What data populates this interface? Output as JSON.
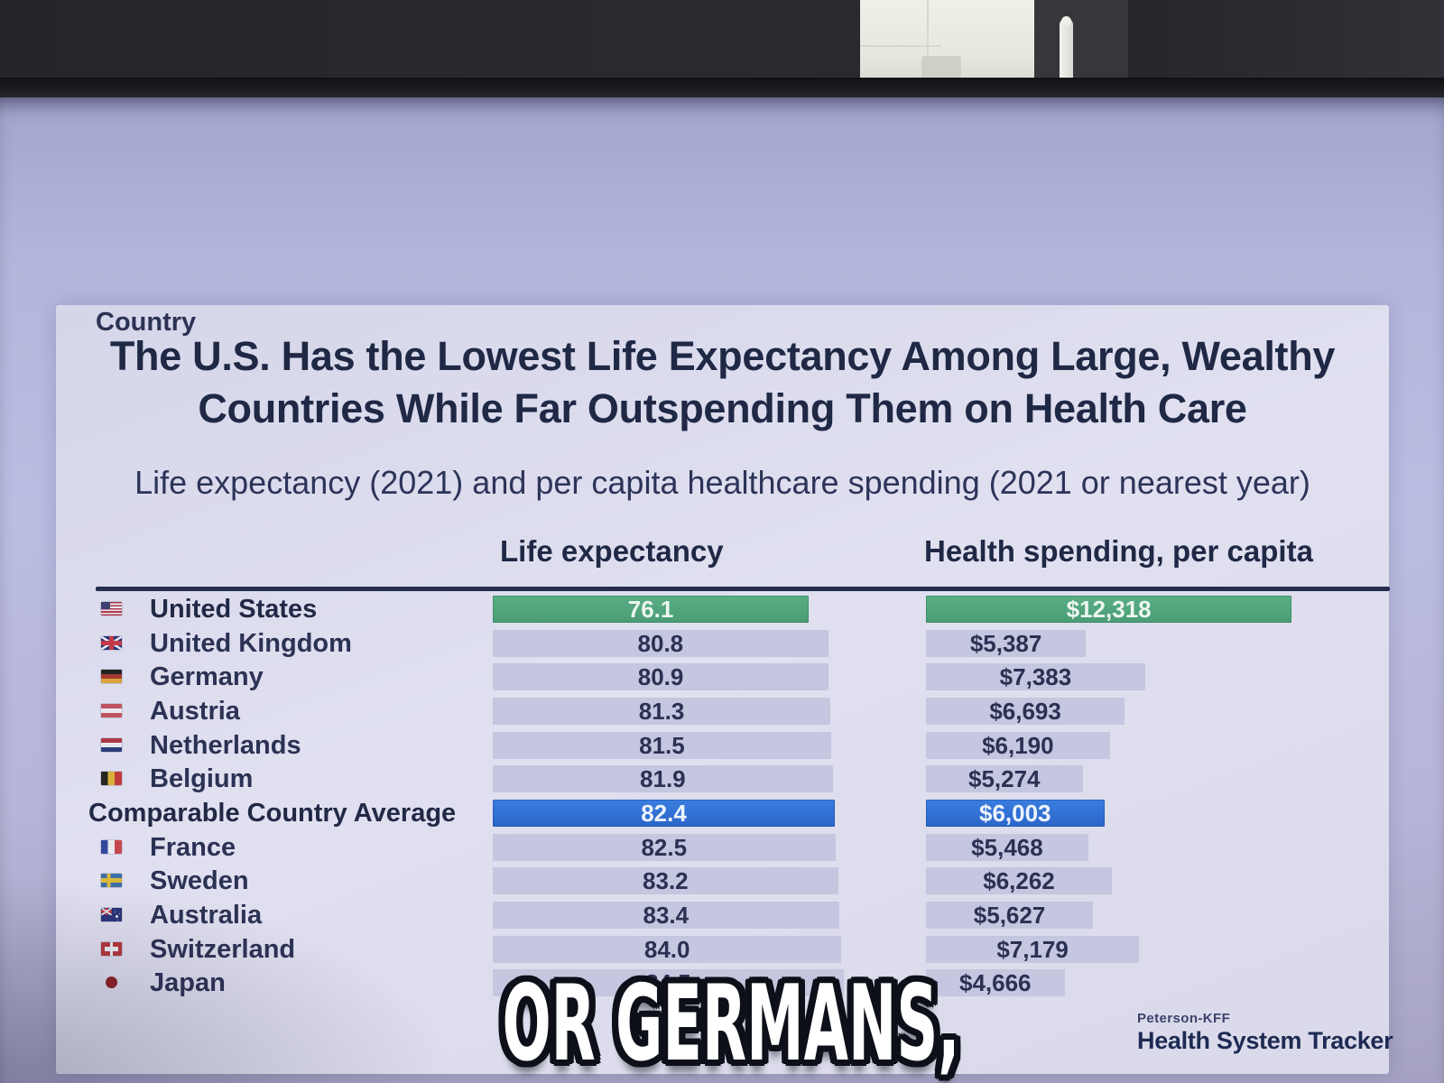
{
  "chart": {
    "title_lines": [
      "The U.S. Has the Lowest Life Expectancy Among Large, Wealthy",
      "Countries While Far Outspending Them on Health Care"
    ],
    "subtitle": "Life expectancy (2021) and per capita healthcare spending (2021 or nearest year)",
    "columns": {
      "country": "Country",
      "life": "Life expectancy",
      "spend": "Health spending, per capita"
    }
  },
  "chart_data": {
    "type": "bar",
    "orientation": "horizontal",
    "title": "The U.S. Has the Lowest Life Expectancy Among Large, Wealthy Countries While Far Outspending Them on Health Care",
    "subtitle": "Life expectancy (2021) and per capita healthcare spending (2021 or nearest year)",
    "categories": [
      "United States",
      "United Kingdom",
      "Germany",
      "Austria",
      "Netherlands",
      "Belgium",
      "Comparable Country Average",
      "France",
      "Sweden",
      "Australia",
      "Switzerland",
      "Japan"
    ],
    "series": [
      {
        "name": "Life expectancy",
        "values": [
          76.1,
          80.8,
          80.9,
          81.3,
          81.5,
          81.9,
          82.4,
          82.5,
          83.2,
          83.4,
          84.0,
          84.5
        ]
      },
      {
        "name": "Health spending, per capita (USD)",
        "values": [
          12318,
          5387,
          7383,
          6693,
          6190,
          5274,
          6003,
          5468,
          6262,
          5627,
          7179,
          4666
        ]
      }
    ],
    "highlighted_rows": {
      "United States": "green",
      "Comparable Country Average": "blue"
    },
    "axis_start": 0,
    "grid": false,
    "legend": false
  },
  "table": {
    "flags": [
      "us",
      "gb",
      "de",
      "at",
      "nl",
      "be",
      "",
      "fr",
      "se",
      "au",
      "ch",
      "jp"
    ],
    "highlight": [
      "green",
      "",
      "",
      "",
      "",
      "",
      "blue",
      "",
      "",
      "",
      "",
      ""
    ],
    "bold": [
      true,
      false,
      false,
      false,
      false,
      false,
      true,
      false,
      false,
      false,
      false,
      false
    ]
  },
  "caption": {
    "text": "OR GERMANS,"
  },
  "logo": {
    "brand": "Peterson-KFF",
    "product": "Health System Tracker"
  },
  "colors": {
    "us_highlight": "#4fa57d",
    "average_highlight": "#2e6fd2",
    "bar_default": "#c5c6df",
    "screen_background": "#b4b6dd",
    "card_background": "#dcdcee",
    "heading_text": "#1f2845",
    "caption_fill": "#ffffff",
    "caption_outline": "#0d1018"
  }
}
